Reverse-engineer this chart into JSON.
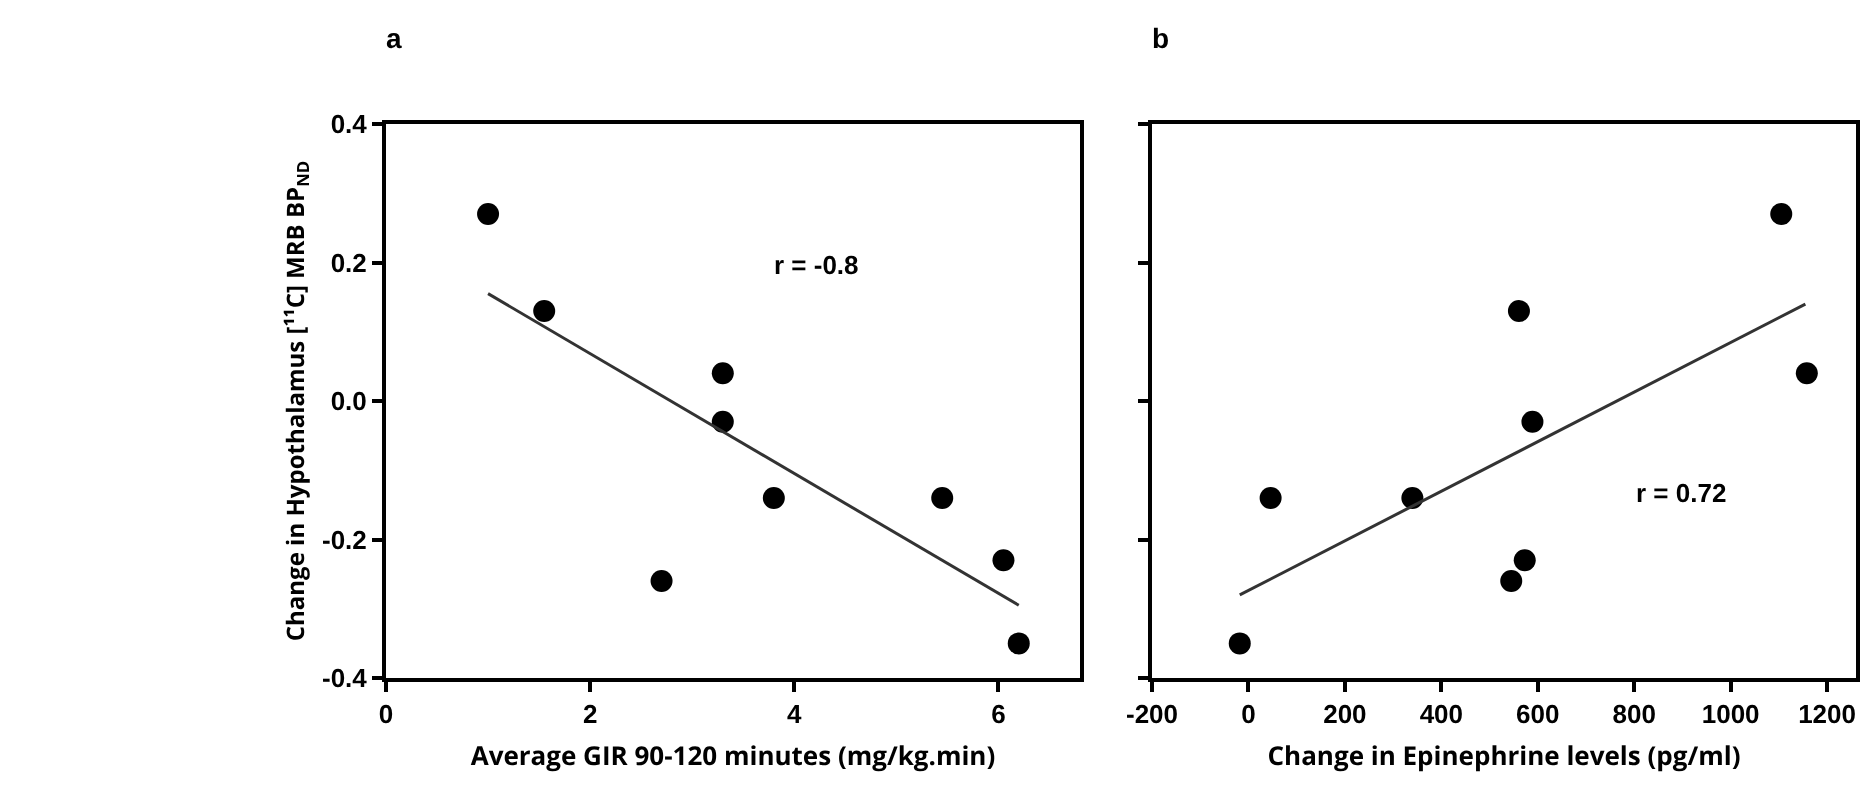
{
  "chart_data": [
    {
      "type": "scatter",
      "title": "a",
      "xlabel": "Average GIR 90-120 minutes (mg/kg.min)",
      "ylabel": "Change in Hypothalamus [¹¹C] MRB BP$_{ND}$",
      "x": [
        1.0,
        1.55,
        2.7,
        3.3,
        3.3,
        3.8,
        5.45,
        6.05,
        6.2
      ],
      "series": [
        {
          "color": "#000000",
          "marker": "circle",
          "values": [
            0.27,
            0.13,
            -0.26,
            0.04,
            -0.03,
            -0.14,
            -0.14,
            -0.23,
            -0.35
          ]
        },
        {
          "type": "line",
          "color": "#333333",
          "marker": "none",
          "x": [
            1.0,
            6.2
          ],
          "values": [
            0.155,
            -0.295
          ]
        }
      ],
      "xlim": [
        0,
        6.8
      ],
      "xticks": [
        0,
        2,
        4,
        6
      ],
      "ylim": [
        -0.4,
        0.4
      ],
      "yticks": [
        {
          "value": -0.4,
          "label": "-0.4"
        },
        {
          "value": -0.2,
          "label": "-0.2"
        },
        {
          "value": 0,
          "label": "0.0"
        },
        {
          "value": 0.2,
          "label": "0.2"
        },
        {
          "value": 0.4,
          "label": "0.4"
        }
      ],
      "annotations": [
        "r = -0.8"
      ],
      "grid": false
    },
    {
      "type": "scatter",
      "title": "b",
      "xlabel": "Change in Epinephrine levels (pg/ml)",
      "x": [
        -18,
        46,
        340,
        545,
        561,
        573,
        589,
        1105,
        1158
      ],
      "series": [
        {
          "color": "#000000",
          "marker": "circle",
          "values": [
            -0.35,
            -0.14,
            -0.14,
            -0.26,
            0.13,
            -0.23,
            -0.03,
            0.27,
            0.04
          ]
        },
        {
          "type": "line",
          "color": "#333333",
          "marker": "none",
          "x": [
            -18,
            1155
          ],
          "values": [
            -0.28,
            0.14
          ]
        }
      ],
      "xlim": [
        -200,
        1260
      ],
      "xticks": [
        -200,
        0,
        200,
        400,
        600,
        800,
        1000,
        1200
      ],
      "ylim": [
        -0.4,
        0.4
      ],
      "yticks": [
        -0.4,
        -0.2,
        0,
        0.2,
        0.4
      ],
      "tick_labels": "x",
      "annotations": [
        "r = 0.72"
      ],
      "grid": false
    }
  ]
}
